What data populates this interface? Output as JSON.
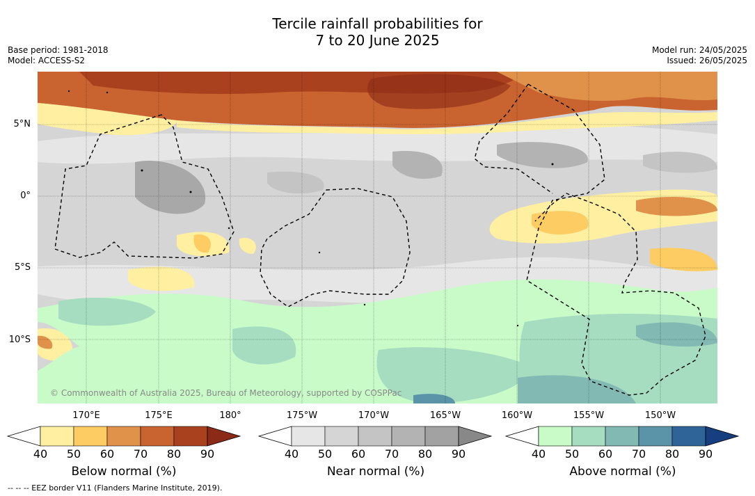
{
  "title_line1": "Tercile rainfall probabilities for",
  "title_line2": "7 to 20 June 2025",
  "base_period": "Base period: 1981-2018",
  "model": "Model: ACCESS-S2",
  "model_run": "Model run: 24/05/2025",
  "issued": "Issued: 26/05/2025",
  "lat_labels": [
    "5°N",
    "0°",
    "5°S",
    "10°S"
  ],
  "lon_labels": [
    "170°E",
    "175°E",
    "180°",
    "175°W",
    "170°W",
    "165°W",
    "160°W",
    "155°W",
    "150°W"
  ],
  "copyright": "© Commonwealth of Australia 2025, Bureau of Meteorology, supported by COSPPac",
  "colorbars": [
    {
      "label": "Below normal (%)",
      "ticks": [
        "40",
        "50",
        "60",
        "70",
        "80",
        "90"
      ],
      "colors": [
        "#ffefa0",
        "#fdcd63",
        "#e0924a",
        "#c9632f",
        "#a9411f",
        "#8b2a16"
      ]
    },
    {
      "label": "Near normal (%)",
      "ticks": [
        "40",
        "50",
        "60",
        "70",
        "80",
        "90"
      ],
      "colors": [
        "#e6e6e6",
        "#d5d5d5",
        "#c4c4c4",
        "#b3b3b3",
        "#a2a2a2",
        "#888888"
      ]
    },
    {
      "label": "Above normal (%)",
      "ticks": [
        "40",
        "50",
        "60",
        "70",
        "80",
        "90"
      ],
      "colors": [
        "#c9fbc9",
        "#a6dcc0",
        "#82bab3",
        "#5b93a8",
        "#2e6498",
        "#173f80"
      ]
    }
  ],
  "footnote": "--  --  -- EEZ border V11 (Flanders Marine Institute, 2019)."
}
